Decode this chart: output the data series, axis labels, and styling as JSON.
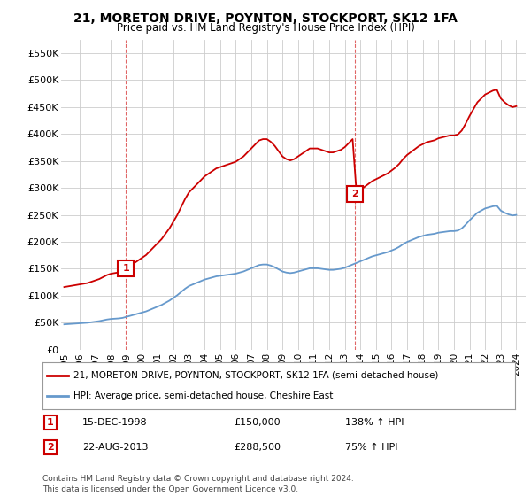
{
  "title": "21, MORETON DRIVE, POYNTON, STOCKPORT, SK12 1FA",
  "subtitle": "Price paid vs. HM Land Registry's House Price Index (HPI)",
  "legend_line1": "21, MORETON DRIVE, POYNTON, STOCKPORT, SK12 1FA (semi-detached house)",
  "legend_line2": "HPI: Average price, semi-detached house, Cheshire East",
  "transaction1_label": "1",
  "transaction1_date": "15-DEC-1998",
  "transaction1_price": "£150,000",
  "transaction1_hpi": "138% ↑ HPI",
  "transaction2_label": "2",
  "transaction2_date": "22-AUG-2013",
  "transaction2_price": "£288,500",
  "transaction2_hpi": "75% ↑ HPI",
  "footer": "Contains HM Land Registry data © Crown copyright and database right 2024.\nThis data is licensed under the Open Government Licence v3.0.",
  "red_color": "#cc0000",
  "blue_color": "#6699cc",
  "background": "#ffffff",
  "grid_color": "#cccccc",
  "ylim": [
    0,
    575000
  ],
  "yticks": [
    0,
    50000,
    100000,
    150000,
    200000,
    250000,
    300000,
    350000,
    400000,
    450000,
    500000,
    550000
  ],
  "ytick_labels": [
    "£0",
    "£50K",
    "£100K",
    "£150K",
    "£200K",
    "£250K",
    "£300K",
    "£350K",
    "£400K",
    "£450K",
    "£500K",
    "£550K"
  ],
  "transaction1_x": 1998.96,
  "transaction1_y": 150000,
  "transaction2_x": 2013.64,
  "transaction2_y": 288500,
  "xlim_left": 1994.8,
  "xlim_right": 2024.6,
  "hpi_years": [
    1995.0,
    1995.25,
    1995.5,
    1995.75,
    1996.0,
    1996.25,
    1996.5,
    1996.75,
    1997.0,
    1997.25,
    1997.5,
    1997.75,
    1998.0,
    1998.25,
    1998.5,
    1998.75,
    1999.0,
    1999.25,
    1999.5,
    1999.75,
    2000.0,
    2000.25,
    2000.5,
    2000.75,
    2001.0,
    2001.25,
    2001.5,
    2001.75,
    2002.0,
    2002.25,
    2002.5,
    2002.75,
    2003.0,
    2003.25,
    2003.5,
    2003.75,
    2004.0,
    2004.25,
    2004.5,
    2004.75,
    2005.0,
    2005.25,
    2005.5,
    2005.75,
    2006.0,
    2006.25,
    2006.5,
    2006.75,
    2007.0,
    2007.25,
    2007.5,
    2007.75,
    2008.0,
    2008.25,
    2008.5,
    2008.75,
    2009.0,
    2009.25,
    2009.5,
    2009.75,
    2010.0,
    2010.25,
    2010.5,
    2010.75,
    2011.0,
    2011.25,
    2011.5,
    2011.75,
    2012.0,
    2012.25,
    2012.5,
    2012.75,
    2013.0,
    2013.25,
    2013.5,
    2013.75,
    2014.0,
    2014.25,
    2014.5,
    2014.75,
    2015.0,
    2015.25,
    2015.5,
    2015.75,
    2016.0,
    2016.25,
    2016.5,
    2016.75,
    2017.0,
    2017.25,
    2017.5,
    2017.75,
    2018.0,
    2018.25,
    2018.5,
    2018.75,
    2019.0,
    2019.25,
    2019.5,
    2019.75,
    2020.0,
    2020.25,
    2020.5,
    2020.75,
    2021.0,
    2021.25,
    2021.5,
    2021.75,
    2022.0,
    2022.25,
    2022.5,
    2022.75,
    2023.0,
    2023.25,
    2023.5,
    2023.75,
    2024.0
  ],
  "hpi_values": [
    47000,
    47500,
    48000,
    48500,
    49000,
    49500,
    50000,
    51000,
    52000,
    53000,
    54500,
    56000,
    57000,
    57500,
    58000,
    59000,
    61000,
    63000,
    65000,
    67000,
    69000,
    71000,
    74000,
    77000,
    80000,
    83000,
    87000,
    91000,
    96000,
    101000,
    107000,
    113000,
    118000,
    121000,
    124000,
    127000,
    130000,
    132000,
    134000,
    136000,
    137000,
    138000,
    139000,
    140000,
    141000,
    143000,
    145000,
    148000,
    151000,
    154000,
    157000,
    158000,
    158000,
    156000,
    153000,
    149000,
    145000,
    143000,
    142000,
    143000,
    145000,
    147000,
    149000,
    151000,
    151000,
    151000,
    150000,
    149000,
    148000,
    148000,
    149000,
    150000,
    152000,
    155000,
    158000,
    161000,
    164000,
    167000,
    170000,
    173000,
    175000,
    177000,
    179000,
    181000,
    184000,
    187000,
    191000,
    196000,
    200000,
    203000,
    206000,
    209000,
    211000,
    213000,
    214000,
    215000,
    217000,
    218000,
    219000,
    220000,
    220000,
    221000,
    225000,
    232000,
    240000,
    247000,
    254000,
    258000,
    262000,
    264000,
    266000,
    267000,
    258000,
    254000,
    251000,
    249000,
    250000
  ]
}
